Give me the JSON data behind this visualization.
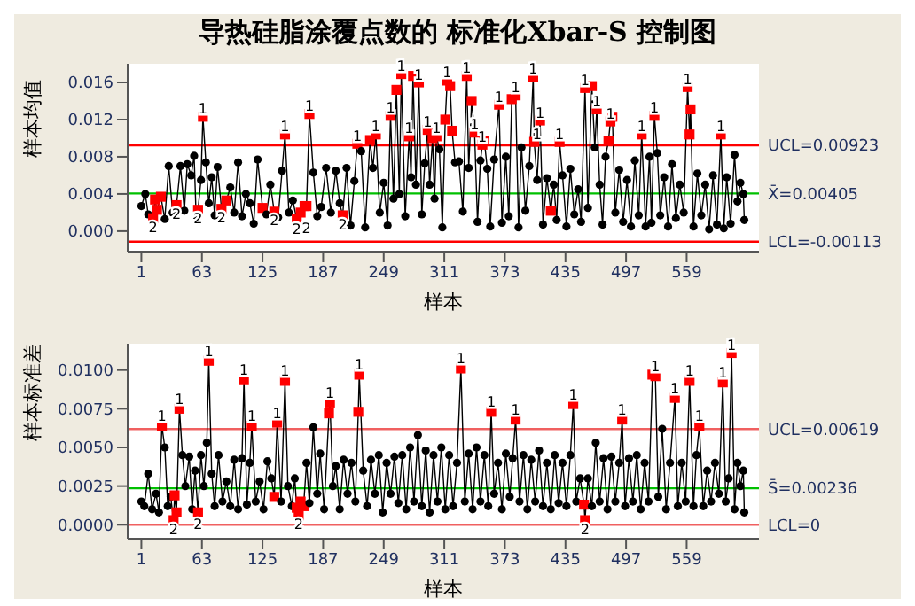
{
  "chart_data": [
    {
      "type": "line",
      "title": "导热硅脂涂覆点数的 标准化Xbar-S 控制图",
      "xlabel": "样本",
      "ylabel": "样本均值",
      "marker": "circle",
      "xlim": [
        -13,
        633
      ],
      "xticks": [
        1,
        63,
        125,
        187,
        249,
        311,
        373,
        435,
        497,
        559
      ],
      "ylim": [
        -0.0022,
        0.018
      ],
      "yticks": [
        {
          "value": 0,
          "label": "0.000"
        },
        0.004,
        0.008,
        0.012,
        0.016
      ],
      "ref_lines": [
        {
          "axis": "y",
          "value": 0.00923,
          "label": "UCL=0.00923",
          "color": "#ff0000"
        },
        {
          "axis": "y",
          "value": 0.00405,
          "label": "X̄=0.00405",
          "color": "#00c000"
        },
        {
          "axis": "y",
          "value": -0.00113,
          "label": "LCL=-0.00113",
          "color": "#ff0000"
        }
      ],
      "series": [
        {
          "color": "#000000",
          "x": [
            1,
            5,
            8,
            13,
            15,
            17,
            21,
            25,
            29,
            33,
            37,
            41,
            45,
            48,
            52,
            55,
            57,
            59,
            62,
            64,
            67,
            70,
            73,
            76,
            79,
            83,
            88,
            92,
            96,
            100,
            104,
            108,
            112,
            116,
            120,
            125,
            129,
            133,
            137,
            141,
            145,
            148,
            152,
            156,
            160,
            164,
            168,
            170,
            173,
            177,
            181,
            185,
            190,
            195,
            200,
            204,
            207,
            211,
            215,
            219,
            222,
            226,
            230,
            235,
            238,
            241,
            245,
            249,
            253,
            256,
            259,
            262,
            265,
            267,
            271,
            275,
            277,
            279,
            282,
            285,
            288,
            291,
            294,
            296,
            299,
            301,
            303,
            306,
            309,
            312,
            314,
            317,
            319,
            322,
            326,
            330,
            334,
            336,
            339,
            342,
            345,
            348,
            350,
            352,
            355,
            358,
            362,
            367,
            370,
            374,
            377,
            380,
            384,
            387,
            390,
            394,
            398,
            402,
            403,
            406,
            409,
            412,
            416,
            420,
            423,
            426,
            429,
            432,
            436,
            440,
            444,
            448,
            451,
            455,
            458,
            462,
            465,
            467,
            470,
            473,
            476,
            479,
            481,
            483,
            486,
            490,
            494,
            498,
            502,
            506,
            510,
            513,
            517,
            521,
            523,
            526,
            529,
            532,
            536,
            540,
            544,
            548,
            552,
            556,
            560,
            562,
            563,
            566,
            570,
            574,
            578,
            582,
            586,
            590,
            594,
            597,
            600,
            604,
            608,
            611,
            614,
            617,
            618
          ],
          "values": [
            0.0027,
            0.004,
            0.0018,
            0.0014,
            0.0034,
            0.0023,
            0.0037,
            0.0013,
            0.007,
            0.002,
            0.0028,
            0.007,
            0.0022,
            0.0072,
            0.006,
            0.0081,
            0.0017,
            0.0023,
            0.0055,
            0.0123,
            0.0074,
            0.003,
            0.0058,
            0.0017,
            0.0069,
            0.0024,
            0.0033,
            0.0047,
            0.002,
            0.0074,
            0.0016,
            0.004,
            0.003,
            0.0008,
            0.0077,
            0.0025,
            0.0018,
            0.005,
            0.0021,
            0.0015,
            0.0065,
            0.0104,
            0.002,
            0.0033,
            0.0013,
            0.002,
            0.0027,
            0.0027,
            0.0126,
            0.0063,
            0.0016,
            0.0026,
            0.0068,
            0.002,
            0.0065,
            0.003,
            0.0017,
            0.0068,
            0.0006,
            0.0054,
            0.0094,
            0.0086,
            0.0004,
            0.0098,
            0.0068,
            0.0104,
            0.002,
            0.0052,
            0.0006,
            0.0124,
            0.0035,
            0.0152,
            0.004,
            0.0169,
            0.0016,
            0.0102,
            0.0058,
            0.0167,
            0.005,
            0.016,
            0.0018,
            0.0073,
            0.0109,
            0.005,
            0.01,
            0.0035,
            0.0102,
            0.0088,
            0.0004,
            0.012,
            0.0162,
            0.0156,
            0.0108,
            0.0074,
            0.0075,
            0.0021,
            0.0167,
            0.0068,
            0.014,
            0.0106,
            0.001,
            0.0076,
            0.0093,
            0.0097,
            0.0067,
            0.0005,
            0.0077,
            0.0136,
            0.0009,
            0.008,
            0.0016,
            0.0142,
            0.0146,
            0.0004,
            0.009,
            0.0022,
            0.007,
            0.0166,
            0.0096,
            0.0055,
            0.0119,
            0.0007,
            0.0057,
            0.0022,
            0.005,
            0.0012,
            0.0096,
            0.006,
            0.0005,
            0.0067,
            0.0018,
            0.0045,
            0.001,
            0.0154,
            0.0025,
            0.0156,
            0.009,
            0.0131,
            0.005,
            0.0007,
            0.008,
            0.0097,
            0.0118,
            0.0123,
            0.002,
            0.0066,
            0.001,
            0.0055,
            0.0005,
            0.0076,
            0.0017,
            0.0104,
            0.0005,
            0.008,
            0.0009,
            0.0124,
            0.0084,
            0.0017,
            0.0058,
            0.0005,
            0.0072,
            0.0014,
            0.005,
            0.002,
            0.0155,
            0.0104,
            0.0131,
            0.0005,
            0.0062,
            0.0017,
            0.005,
            0.0002,
            0.006,
            0.0007,
            0.0104,
            0.0003,
            0.0058,
            0.0008,
            0.0082,
            0.0032,
            0.0052,
            0.004,
            0.0012
          ],
          "colors": [
            "#000000",
            "#000000",
            "#000000",
            "#ff0000",
            "#ff0000",
            "#ff0000",
            "#ff0000",
            "#000000",
            "#000000",
            "#000000",
            "#ff0000",
            "#000000",
            "#000000",
            "#000000",
            "#000000",
            "#000000",
            "#000000",
            "#ff0000",
            "#000000",
            "#ff0000",
            "#000000",
            "#000000",
            "#000000",
            "#000000",
            "#000000",
            "#ff0000",
            "#ff0000",
            "#000000",
            "#000000",
            "#000000",
            "#000000",
            "#000000",
            "#000000",
            "#000000",
            "#000000",
            "#ff0000",
            "#000000",
            "#000000",
            "#ff0000",
            "#000000",
            "#000000",
            "#ff0000",
            "#000000",
            "#000000",
            "#ff0000",
            "#ff0000",
            "#ff0000",
            "#ff0000",
            "#ff0000",
            "#000000",
            "#000000",
            "#000000",
            "#000000",
            "#000000",
            "#000000",
            "#000000",
            "#ff0000",
            "#000000",
            "#000000",
            "#000000",
            "#ff0000",
            "#000000",
            "#000000",
            "#ff0000",
            "#000000",
            "#ff0000",
            "#000000",
            "#000000",
            "#000000",
            "#ff0000",
            "#000000",
            "#ff0000",
            "#000000",
            "#ff0000",
            "#000000",
            "#ff0000",
            "#000000",
            "#ff0000",
            "#000000",
            "#ff0000",
            "#000000",
            "#000000",
            "#ff0000",
            "#000000",
            "#ff0000",
            "#000000",
            "#ff0000",
            "#000000",
            "#000000",
            "#ff0000",
            "#ff0000",
            "#ff0000",
            "#ff0000",
            "#000000",
            "#000000",
            "#000000",
            "#ff0000",
            "#000000",
            "#ff0000",
            "#ff0000",
            "#000000",
            "#000000",
            "#ff0000",
            "#ff0000",
            "#000000",
            "#000000",
            "#000000",
            "#ff0000",
            "#000000",
            "#000000",
            "#000000",
            "#ff0000",
            "#ff0000",
            "#000000",
            "#000000",
            "#000000",
            "#000000",
            "#ff0000",
            "#ff0000",
            "#000000",
            "#ff0000",
            "#000000",
            "#000000",
            "#ff0000",
            "#000000",
            "#000000",
            "#ff0000",
            "#000000",
            "#000000",
            "#000000",
            "#000000",
            "#000000",
            "#000000",
            "#ff0000",
            "#000000",
            "#ff0000",
            "#000000",
            "#ff0000",
            "#000000",
            "#000000",
            "#000000",
            "#ff0000",
            "#ff0000",
            "#ff0000",
            "#000000",
            "#000000",
            "#000000",
            "#000000",
            "#000000",
            "#000000",
            "#000000",
            "#ff0000",
            "#000000",
            "#000000",
            "#000000",
            "#ff0000",
            "#000000",
            "#000000",
            "#000000",
            "#000000",
            "#000000",
            "#000000",
            "#000000",
            "#000000",
            "#ff0000",
            "#ff0000",
            "#ff0000",
            "#000000",
            "#000000",
            "#000000",
            "#000000",
            "#000000",
            "#000000",
            "#000000",
            "#ff0000",
            "#000000",
            "#000000",
            "#000000",
            "#000000",
            "#000000",
            "#000000",
            "#000000",
            "#000000"
          ]
        }
      ],
      "annotations": [
        {
          "text": "1",
          "x": 64,
          "y": 0.0131
        },
        {
          "text": "1",
          "x": 148,
          "y": 0.0112
        },
        {
          "text": "1",
          "x": 173,
          "y": 0.0134
        },
        {
          "text": "1",
          "x": 222,
          "y": 0.0102
        },
        {
          "text": "1",
          "x": 241,
          "y": 0.0112
        },
        {
          "text": "1",
          "x": 256,
          "y": 0.0132
        },
        {
          "text": "1",
          "x": 267,
          "y": 0.0177
        },
        {
          "text": "1",
          "x": 275,
          "y": 0.011
        },
        {
          "text": "1",
          "x": 285,
          "y": 0.0168
        },
        {
          "text": "1",
          "x": 294,
          "y": 0.0117
        },
        {
          "text": "1",
          "x": 303,
          "y": 0.011
        },
        {
          "text": "1",
          "x": 314,
          "y": 0.017
        },
        {
          "text": "1",
          "x": 334,
          "y": 0.0175
        },
        {
          "text": "1",
          "x": 342,
          "y": 0.0114
        },
        {
          "text": "1",
          "x": 350,
          "y": 0.0101
        },
        {
          "text": "1",
          "x": 367,
          "y": 0.0144
        },
        {
          "text": "1",
          "x": 384,
          "y": 0.0154
        },
        {
          "text": "1",
          "x": 402,
          "y": 0.0174
        },
        {
          "text": "1",
          "x": 406,
          "y": 0.0104
        },
        {
          "text": "1",
          "x": 409,
          "y": 0.0127
        },
        {
          "text": "1",
          "x": 429,
          "y": 0.0104
        },
        {
          "text": "1",
          "x": 455,
          "y": 0.0162
        },
        {
          "text": "1",
          "x": 467,
          "y": 0.0139
        },
        {
          "text": "1",
          "x": 481,
          "y": 0.0126
        },
        {
          "text": "1",
          "x": 513,
          "y": 0.0112
        },
        {
          "text": "1",
          "x": 526,
          "y": 0.0132
        },
        {
          "text": "1",
          "x": 560,
          "y": 0.0163
        },
        {
          "text": "1",
          "x": 594,
          "y": 0.0112
        },
        {
          "text": "2",
          "x": 13,
          "y": 0.0004
        },
        {
          "text": "2",
          "x": 37,
          "y": 0.0018
        },
        {
          "text": "2",
          "x": 59,
          "y": 0.0013
        },
        {
          "text": "2",
          "x": 83,
          "y": 0.0014
        },
        {
          "text": "2",
          "x": 137,
          "y": 0.0011
        },
        {
          "text": "2",
          "x": 160,
          "y": 0.0002
        },
        {
          "text": "2",
          "x": 170,
          "y": 0.0003
        },
        {
          "text": "2",
          "x": 207,
          "y": 0.0007
        }
      ]
    },
    {
      "type": "line",
      "xlabel": "样本",
      "ylabel": "样本标准差",
      "marker": "circle",
      "xlim": [
        -13,
        633
      ],
      "xticks": [
        1,
        63,
        125,
        187,
        249,
        311,
        373,
        435,
        497,
        559
      ],
      "ylim": [
        -0.0009,
        0.0117
      ],
      "yticks": [
        {
          "value": 0,
          "label": "0.0000"
        },
        0.0025,
        {
          "value": 0.005,
          "label": "0.0050"
        },
        0.0075,
        {
          "value": 0.01,
          "label": "0.0100"
        }
      ],
      "ref_lines": [
        {
          "axis": "y",
          "value": 0.00619,
          "label": "UCL=0.00619",
          "color": "#f06060"
        },
        {
          "axis": "y",
          "value": 0.00236,
          "label": "S̄=0.00236",
          "color": "#00c000"
        },
        {
          "axis": "y",
          "value": 0,
          "label": "LCL=0",
          "color": "#f06060"
        }
      ],
      "series": [
        {
          "color": "#000000",
          "x": [
            1,
            4,
            8,
            12,
            16,
            19,
            22,
            25,
            28,
            31,
            34,
            35,
            37,
            40,
            43,
            46,
            50,
            53,
            56,
            59,
            62,
            65,
            68,
            70,
            73,
            76,
            80,
            84,
            88,
            92,
            96,
            100,
            104,
            106,
            109,
            112,
            114,
            118,
            122,
            126,
            130,
            134,
            137,
            140,
            144,
            148,
            151,
            155,
            158,
            160,
            162,
            164,
            167,
            170,
            173,
            177,
            181,
            184,
            188,
            193,
            194,
            197,
            200,
            204,
            208,
            212,
            216,
            220,
            223,
            224,
            228,
            232,
            236,
            240,
            244,
            248,
            252,
            256,
            260,
            264,
            268,
            272,
            276,
            280,
            284,
            288,
            292,
            296,
            300,
            304,
            308,
            312,
            316,
            320,
            324,
            328,
            332,
            336,
            340,
            344,
            348,
            352,
            356,
            359,
            362,
            366,
            370,
            374,
            378,
            381,
            384,
            388,
            392,
            396,
            400,
            404,
            408,
            412,
            416,
            420,
            424,
            428,
            432,
            436,
            440,
            443,
            446,
            450,
            454,
            455,
            458,
            462,
            466,
            470,
            474,
            478,
            482,
            486,
            490,
            493,
            496,
            500,
            504,
            508,
            512,
            516,
            520,
            524,
            527,
            530,
            534,
            538,
            542,
            547,
            550,
            554,
            558,
            562,
            566,
            569,
            572,
            576,
            580,
            584,
            588,
            592,
            596,
            599,
            602,
            605,
            608,
            611,
            614,
            617,
            618
          ],
          "values": [
            0.0015,
            0.0012,
            0.0033,
            0.001,
            0.002,
            0.0008,
            0.0064,
            0.005,
            0.0012,
            0.0018,
            0.0003,
            0.0019,
            0.0008,
            0.0075,
            0.0045,
            0.0025,
            0.0044,
            0.001,
            0.0035,
            0.0008,
            0.0045,
            0.0025,
            0.0053,
            0.0106,
            0.0033,
            0.0012,
            0.0045,
            0.0015,
            0.0028,
            0.0012,
            0.0042,
            0.001,
            0.0043,
            0.0094,
            0.0013,
            0.004,
            0.0064,
            0.0015,
            0.0028,
            0.001,
            0.0041,
            0.003,
            0.0018,
            0.0066,
            0.0015,
            0.0093,
            0.0025,
            0.0012,
            0.003,
            0.0011,
            0.0006,
            0.0015,
            0.0012,
            0.004,
            0.0014,
            0.0063,
            0.002,
            0.0046,
            0.001,
            0.0072,
            0.0079,
            0.0025,
            0.0038,
            0.001,
            0.0042,
            0.002,
            0.004,
            0.0015,
            0.0073,
            0.0097,
            0.0035,
            0.0012,
            0.0042,
            0.002,
            0.0045,
            0.0008,
            0.004,
            0.002,
            0.0044,
            0.0014,
            0.0045,
            0.001,
            0.005,
            0.0015,
            0.0058,
            0.0012,
            0.0048,
            0.0008,
            0.0045,
            0.0015,
            0.005,
            0.001,
            0.0045,
            0.0012,
            0.004,
            0.0101,
            0.0015,
            0.0046,
            0.001,
            0.005,
            0.0015,
            0.0045,
            0.0012,
            0.0073,
            0.002,
            0.004,
            0.001,
            0.0046,
            0.0018,
            0.0043,
            0.0068,
            0.0015,
            0.0045,
            0.001,
            0.0042,
            0.0015,
            0.0048,
            0.0012,
            0.004,
            0.001,
            0.0045,
            0.0014,
            0.004,
            0.0012,
            0.0045,
            0.0078,
            0.0015,
            0.003,
            0.0013,
            0.0003,
            0.003,
            0.0012,
            0.0053,
            0.0015,
            0.0043,
            0.001,
            0.0044,
            0.0015,
            0.004,
            0.0068,
            0.0012,
            0.0043,
            0.0015,
            0.0045,
            0.001,
            0.004,
            0.0015,
            0.0097,
            0.0096,
            0.0018,
            0.0062,
            0.001,
            0.004,
            0.0082,
            0.0012,
            0.004,
            0.0015,
            0.0093,
            0.0012,
            0.0045,
            0.0064,
            0.0012,
            0.0035,
            0.0015,
            0.004,
            0.002,
            0.0092,
            0.0015,
            0.003,
            0.0111,
            0.001,
            0.004,
            0.0025,
            0.0035,
            0.0008
          ],
          "colors": [
            "#000000",
            "#000000",
            "#000000",
            "#000000",
            "#000000",
            "#000000",
            "#ff0000",
            "#000000",
            "#000000",
            "#000000",
            "#ff0000",
            "#ff0000",
            "#ff0000",
            "#ff0000",
            "#000000",
            "#000000",
            "#000000",
            "#000000",
            "#000000",
            "#ff0000",
            "#000000",
            "#000000",
            "#000000",
            "#ff0000",
            "#000000",
            "#000000",
            "#000000",
            "#000000",
            "#000000",
            "#000000",
            "#000000",
            "#000000",
            "#000000",
            "#ff0000",
            "#000000",
            "#000000",
            "#ff0000",
            "#000000",
            "#000000",
            "#000000",
            "#000000",
            "#000000",
            "#ff0000",
            "#ff0000",
            "#000000",
            "#ff0000",
            "#000000",
            "#000000",
            "#000000",
            "#ff0000",
            "#ff0000",
            "#ff0000",
            "#ff0000",
            "#000000",
            "#000000",
            "#000000",
            "#000000",
            "#000000",
            "#000000",
            "#ff0000",
            "#ff0000",
            "#000000",
            "#000000",
            "#000000",
            "#000000",
            "#000000",
            "#000000",
            "#000000",
            "#ff0000",
            "#ff0000",
            "#000000",
            "#000000",
            "#000000",
            "#000000",
            "#000000",
            "#000000",
            "#000000",
            "#000000",
            "#000000",
            "#000000",
            "#000000",
            "#000000",
            "#000000",
            "#000000",
            "#000000",
            "#000000",
            "#000000",
            "#000000",
            "#000000",
            "#000000",
            "#000000",
            "#000000",
            "#000000",
            "#000000",
            "#000000",
            "#ff0000",
            "#000000",
            "#000000",
            "#000000",
            "#000000",
            "#000000",
            "#000000",
            "#000000",
            "#ff0000",
            "#000000",
            "#000000",
            "#000000",
            "#000000",
            "#000000",
            "#000000",
            "#ff0000",
            "#000000",
            "#000000",
            "#000000",
            "#000000",
            "#000000",
            "#000000",
            "#000000",
            "#000000",
            "#000000",
            "#000000",
            "#000000",
            "#000000",
            "#000000",
            "#000000",
            "#ff0000",
            "#000000",
            "#000000",
            "#ff0000",
            "#ff0000",
            "#000000",
            "#000000",
            "#000000",
            "#000000",
            "#000000",
            "#000000",
            "#000000",
            "#000000",
            "#000000",
            "#ff0000",
            "#000000",
            "#000000",
            "#000000",
            "#000000",
            "#000000",
            "#000000",
            "#000000",
            "#ff0000",
            "#ff0000",
            "#000000",
            "#000000",
            "#000000",
            "#000000",
            "#ff0000",
            "#000000",
            "#000000",
            "#000000",
            "#ff0000",
            "#000000",
            "#000000",
            "#ff0000",
            "#000000",
            "#000000",
            "#000000",
            "#000000",
            "#000000",
            "#ff0000",
            "#000000",
            "#000000",
            "#ff0000",
            "#000000",
            "#000000",
            "#000000",
            "#000000",
            "#000000"
          ]
        }
      ],
      "annotations": [
        {
          "text": "1",
          "x": 22,
          "y": 0.007
        },
        {
          "text": "1",
          "x": 40,
          "y": 0.0081
        },
        {
          "text": "1",
          "x": 70,
          "y": 0.0112
        },
        {
          "text": "1",
          "x": 106,
          "y": 0.01
        },
        {
          "text": "1",
          "x": 114,
          "y": 0.007
        },
        {
          "text": "1",
          "x": 140,
          "y": 0.0072
        },
        {
          "text": "1",
          "x": 148,
          "y": 0.0099
        },
        {
          "text": "1",
          "x": 194,
          "y": 0.0085
        },
        {
          "text": "1",
          "x": 224,
          "y": 0.0103
        },
        {
          "text": "1",
          "x": 328,
          "y": 0.0107
        },
        {
          "text": "1",
          "x": 359,
          "y": 0.0079
        },
        {
          "text": "1",
          "x": 384,
          "y": 0.0074
        },
        {
          "text": "1",
          "x": 443,
          "y": 0.0084
        },
        {
          "text": "1",
          "x": 493,
          "y": 0.0074
        },
        {
          "text": "1",
          "x": 527,
          "y": 0.0102
        },
        {
          "text": "1",
          "x": 547,
          "y": 0.0088
        },
        {
          "text": "1",
          "x": 562,
          "y": 0.0099
        },
        {
          "text": "1",
          "x": 572,
          "y": 0.007
        },
        {
          "text": "1",
          "x": 596,
          "y": 0.0098
        },
        {
          "text": "1",
          "x": 605,
          "y": 0.0116
        },
        {
          "text": "2",
          "x": 34,
          "y": -0.0003
        },
        {
          "text": "2",
          "x": 59,
          "y": 0.0
        },
        {
          "text": "2",
          "x": 162,
          "y": 0.0
        },
        {
          "text": "2",
          "x": 455,
          "y": -0.0003
        }
      ]
    }
  ]
}
